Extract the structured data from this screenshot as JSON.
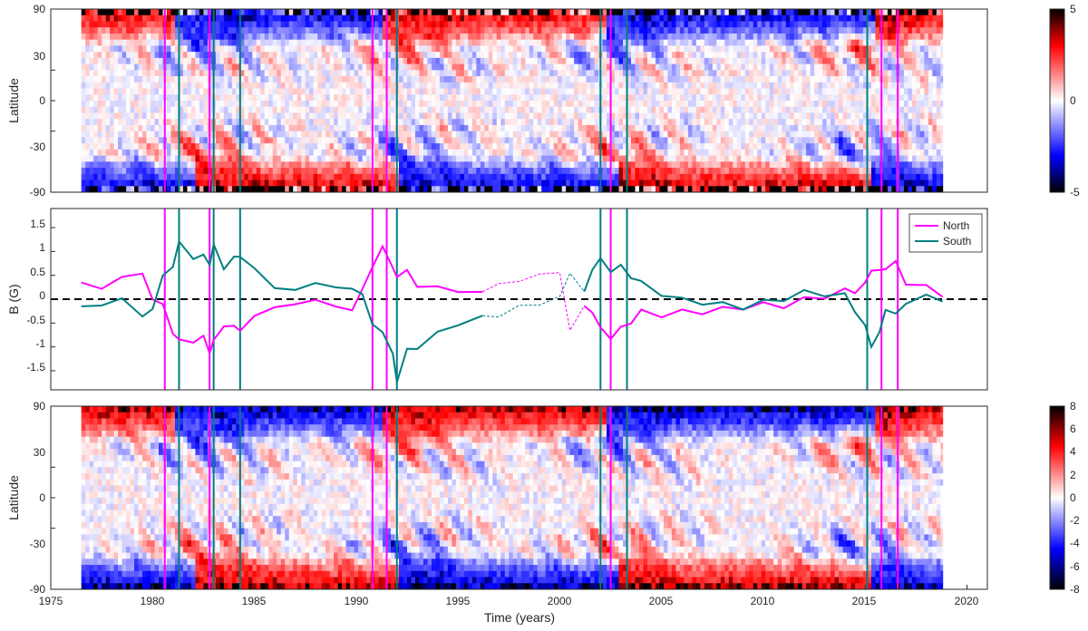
{
  "chart_data": [
    {
      "type": "heatmap",
      "title": "",
      "xlabel": "",
      "ylabel": "Latitude",
      "xlim": [
        1975,
        2021
      ],
      "ylim": [
        -90,
        90
      ],
      "yticks": [
        "90",
        "30",
        "0",
        "-30",
        "-90"
      ],
      "ytick_values": [
        90,
        30,
        0,
        -30,
        -90
      ],
      "data_time_range": [
        1976.5,
        2018.8
      ],
      "colorbar": {
        "min": -5,
        "max": 5,
        "ticks": [
          "5",
          "0",
          "-5"
        ],
        "tick_values": [
          5,
          0,
          -5
        ]
      },
      "colors": {
        "neg": "#0000ff",
        "zero": "#ffffff",
        "pos": "#ff0000",
        "neg_end": "#000000",
        "pos_end": "#000000"
      }
    },
    {
      "type": "line",
      "title": "",
      "xlabel": "",
      "ylabel": "B (G)",
      "xlim": [
        1975,
        2021
      ],
      "ylim": [
        -1.9,
        1.9
      ],
      "yticks": [
        "1.5",
        "1",
        "0.5",
        "0",
        "-0.5",
        "-1",
        "-1.5"
      ],
      "ytick_values": [
        1.5,
        1,
        0.5,
        0,
        -0.5,
        -1,
        -1.5
      ],
      "legend": {
        "placement": "top-right"
      },
      "zero_line": {
        "y": 0,
        "style": "dashed",
        "color": "#000000"
      },
      "dashed_interval": [
        1996.2,
        2001.2
      ],
      "x": [
        1976.5,
        1977.5,
        1978.5,
        1979.5,
        1980.0,
        1980.5,
        1981.0,
        1981.3,
        1982.0,
        1982.5,
        1982.8,
        1983.0,
        1983.5,
        1984.0,
        1984.3,
        1985.0,
        1986.0,
        1987.0,
        1988.0,
        1989.0,
        1989.8,
        1990.3,
        1990.8,
        1991.3,
        1991.8,
        1992.0,
        1992.5,
        1993.0,
        1994.0,
        1995.0,
        1996.2,
        1997.0,
        1998.0,
        1999.0,
        2000.0,
        2000.5,
        2001.2,
        2001.6,
        2002.0,
        2002.5,
        2003.0,
        2003.5,
        2004.0,
        2005.0,
        2006.0,
        2007.0,
        2008.0,
        2009.0,
        2010.0,
        2011.0,
        2012.0,
        2013.0,
        2014.0,
        2014.5,
        2015.0,
        2015.3,
        2015.7,
        2016.0,
        2016.5,
        2017.0,
        2018.0,
        2018.8
      ],
      "series": [
        {
          "name": "North",
          "color": "#ff00ff",
          "values": [
            0.35,
            0.25,
            0.3,
            0.5,
            0.1,
            -0.3,
            -0.6,
            -0.8,
            -0.85,
            -0.9,
            -1.25,
            -0.8,
            -0.5,
            -0.6,
            -0.55,
            -0.4,
            -0.3,
            -0.2,
            -0.15,
            -0.2,
            -0.1,
            0.2,
            0.7,
            1.0,
            0.7,
            0.5,
            0.45,
            0.4,
            0.35,
            0.3,
            0.2,
            0.4,
            0.3,
            0.5,
            0.4,
            -0.6,
            -0.1,
            -0.4,
            -0.75,
            -0.8,
            -0.6,
            -0.4,
            -0.3,
            -0.3,
            -0.2,
            -0.15,
            -0.1,
            -0.05,
            -0.05,
            -0.1,
            -0.05,
            0.0,
            0.05,
            0.2,
            0.3,
            0.45,
            0.5,
            0.45,
            0.85,
            0.3,
            0.2,
            0.05
          ]
        },
        {
          "name": "South",
          "color": "#007f80",
          "values": [
            -0.15,
            -0.1,
            -0.15,
            -0.4,
            -0.1,
            0.3,
            0.8,
            1.25,
            0.9,
            0.8,
            0.6,
            1.2,
            0.7,
            0.85,
            1.0,
            0.6,
            0.1,
            0.1,
            0.2,
            0.2,
            0.35,
            0.1,
            -0.5,
            -0.8,
            -1.1,
            -1.7,
            -1.2,
            -0.9,
            -0.6,
            -0.4,
            -0.3,
            -0.3,
            -0.2,
            -0.15,
            -0.1,
            0.6,
            0.2,
            0.5,
            0.7,
            0.6,
            0.7,
            0.55,
            0.3,
            0.15,
            0.05,
            0.05,
            0.0,
            -0.05,
            0.0,
            0.05,
            0.1,
            0.05,
            -0.05,
            -0.2,
            -0.6,
            -1.15,
            -0.8,
            -0.4,
            -0.25,
            -0.1,
            0.0,
            -0.05
          ]
        }
      ]
    },
    {
      "type": "heatmap",
      "title": "",
      "xlabel": "Time (years)",
      "ylabel": "Latitude",
      "xlim": [
        1975,
        2021
      ],
      "ylim": [
        -90,
        90
      ],
      "xticks": [
        "1975",
        "1980",
        "1985",
        "1990",
        "1995",
        "2000",
        "2005",
        "2010",
        "2015",
        "2020"
      ],
      "xtick_values": [
        1975,
        1980,
        1985,
        1990,
        1995,
        2000,
        2005,
        2010,
        2015,
        2020
      ],
      "yticks": [
        "90",
        "30",
        "0",
        "-30",
        "-90"
      ],
      "ytick_values": [
        90,
        30,
        0,
        -30,
        -90
      ],
      "data_time_range": [
        1976.5,
        2018.8
      ],
      "colorbar": {
        "min": -8,
        "max": 8,
        "ticks": [
          "8",
          "6",
          "4",
          "2",
          "0",
          "-2",
          "-4",
          "-6",
          "-8"
        ],
        "tick_values": [
          8,
          6,
          4,
          2,
          0,
          -2,
          -4,
          -6,
          -8
        ]
      },
      "colors": {
        "neg": "#0000ff",
        "zero": "#ffffff",
        "pos": "#ff0000",
        "neg_end": "#000000",
        "pos_end": "#000000"
      }
    }
  ],
  "event_lines": {
    "north": {
      "color": "#ff00ff",
      "years": [
        1980.6,
        1982.8,
        1990.8,
        1991.5,
        2002.5,
        2015.8,
        2016.6
      ]
    },
    "south": {
      "color": "#007f80",
      "years": [
        1981.3,
        1983.0,
        1984.3,
        1992.0,
        2002.0,
        2003.3,
        2015.1
      ]
    }
  }
}
